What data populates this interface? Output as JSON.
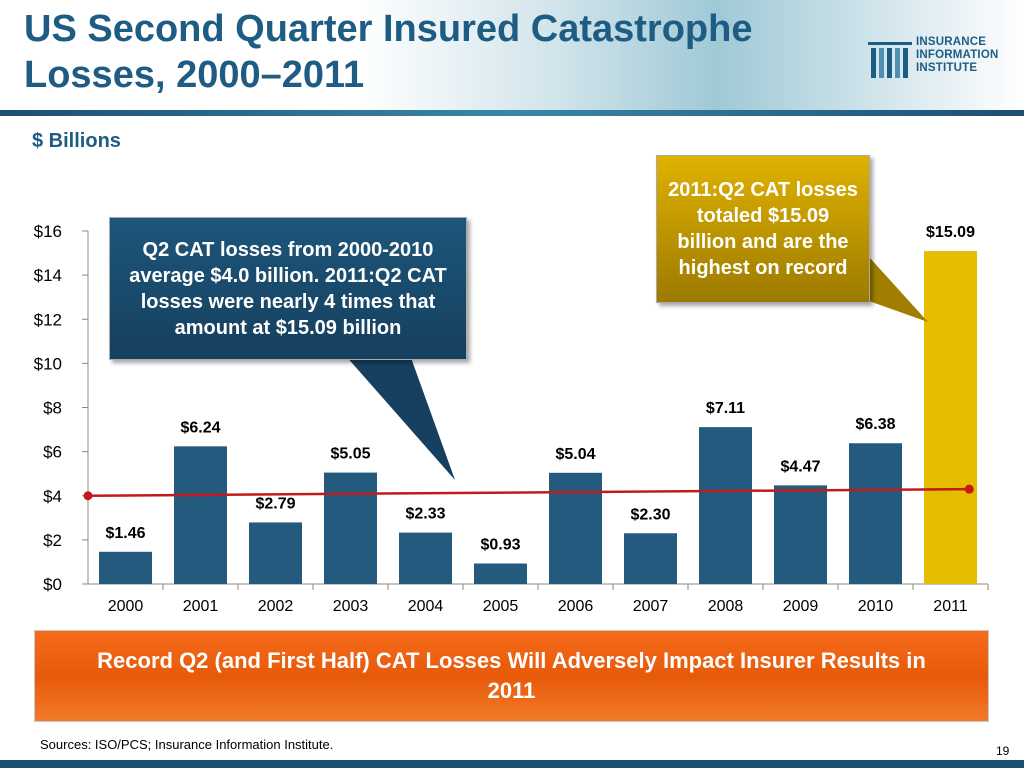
{
  "title": "US Second Quarter Insured Catastrophe Losses, 2000–2011",
  "logo": {
    "lines": [
      "INSURANCE",
      "INFORMATION",
      "INSTITUTE"
    ],
    "icon": "iii-logo-icon"
  },
  "units_label": "$ Billions",
  "chart_data": {
    "type": "bar",
    "categories": [
      "2000",
      "2001",
      "2002",
      "2003",
      "2004",
      "2005",
      "2006",
      "2007",
      "2008",
      "2009",
      "2010",
      "2011"
    ],
    "values": [
      1.46,
      6.24,
      2.79,
      5.05,
      2.33,
      0.93,
      5.04,
      2.3,
      7.11,
      4.47,
      6.38,
      15.09
    ],
    "value_labels": [
      "$1.46",
      "$6.24",
      "$2.79",
      "$5.05",
      "$2.33",
      "$0.93",
      "$5.04",
      "$2.30",
      "$7.11",
      "$4.47",
      "$6.38",
      "$15.09"
    ],
    "yticks": [
      0,
      2,
      4,
      6,
      8,
      10,
      12,
      14,
      16
    ],
    "ytick_labels": [
      "$0",
      "$2",
      "$4",
      "$6",
      "$8",
      "$10",
      "$12",
      "$14",
      "$16"
    ],
    "ylim": [
      0,
      16
    ],
    "bar_color": "#245a7e",
    "highlight_color": "#e6bc00",
    "average_line": {
      "start": 4.0,
      "end": 4.3,
      "color": "#c21a1a"
    },
    "grid": false
  },
  "callouts": {
    "average": "Q2 CAT losses from 2000-2010 average $4.0 billion.  2011:Q2 CAT losses were nearly 4 times that amount at $15.09 billion",
    "record": "2011:Q2 CAT losses totaled $15.09 billion and are the highest on record"
  },
  "banner": "Record Q2 (and First Half) CAT Losses Will Adversely Impact Insurer Results in 2011",
  "source": "Sources: ISO/PCS; Insurance Information Institute.",
  "page_number": "19"
}
